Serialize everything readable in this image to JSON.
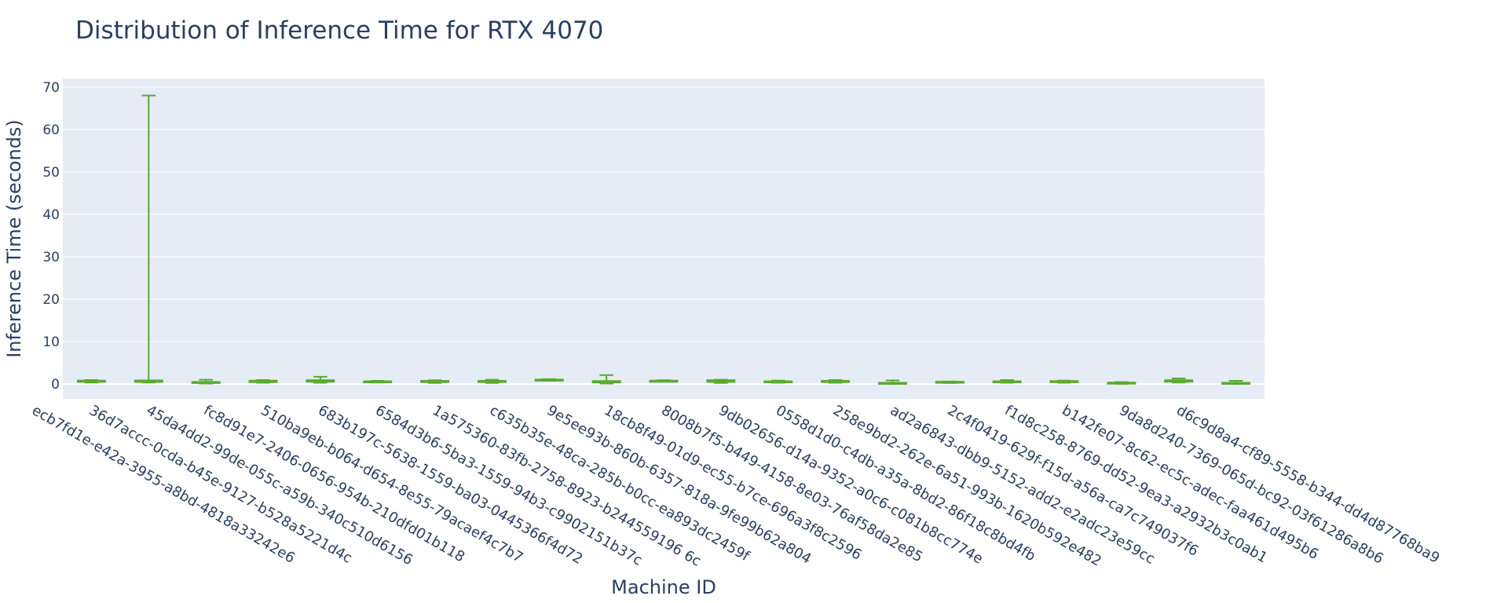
{
  "chart_data": {
    "type": "box",
    "title": "Distribution of Inference Time for RTX 4070",
    "xlabel": "Machine ID",
    "ylabel": "Inference Time (seconds)",
    "ylim": [
      -3.5,
      72
    ],
    "yticks": [
      0,
      10,
      20,
      30,
      40,
      50,
      60,
      70
    ],
    "grid": true,
    "legend": "none",
    "plot_bg": "#e5ecf6",
    "grid_color": "#ffffff",
    "box_color": "#5aaa2e",
    "text_color": "#2a3f5f",
    "categories": [
      "ecb7fd1e-e42a-3955-a8bd-4818a33242e6",
      "36d7accc-0cda-b45e-9127-b528a5221d4c",
      "45da4dd2-99de-055c-a59b-340c510d6156",
      "fc8d91e7-2406-0656-954b-210dfd01b118",
      "510ba9eb-b064-d654-8e55-79acaef4c7b7",
      "683b197c-5638-1559-ba03-0445366f4d72",
      "6584d3b6-5ba3-1559-94b3-c9902151b37c",
      "1a575360-83fb-2758-8923-b244559196 6c",
      "c635b35e-48ca-285b-b0cc-ea893dc2459f",
      "9e5ee93b-860b-6357-818a-9fe99b62a804",
      "18cb8f49-01d9-ec55-b7ce-696a3f8c2596",
      "8008b7f5-b449-4158-8e03-76af58da2e85",
      "9db02656-d14a-9352-a0c6-c081b8cc774e",
      "0558d1d0-c4db-a35a-8bd2-86f18c8bd4fb",
      "258e9bd2-262e-6a51-993b-1620b592e482",
      "ad2a6843-dbb9-5152-add2-e2adc23e59cc",
      "2c4f0419-629f-f15d-a56a-ca7c749037f6",
      "f1d8c258-8769-dd52-9ea3-a2932b3c0ab1",
      "b142fe07-8c62-ec5c-adec-faa461d495b6",
      "9da8d240-7369-065d-bc92-03f61286a8b6",
      "d6c9d8a4-cf89-5558-b344-dd4d87768ba9"
    ],
    "series": [
      {
        "boxes": [
          {
            "min": 0.35,
            "q1": 0.5,
            "median": 0.65,
            "q3": 0.8,
            "max": 0.95
          },
          {
            "min": 0.35,
            "q1": 0.5,
            "median": 0.65,
            "q3": 0.85,
            "max": 68.0
          },
          {
            "min": 0.1,
            "q1": 0.25,
            "median": 0.35,
            "q3": 0.5,
            "max": 1.0
          },
          {
            "min": 0.3,
            "q1": 0.45,
            "median": 0.6,
            "q3": 0.8,
            "max": 0.95
          },
          {
            "min": 0.3,
            "q1": 0.55,
            "median": 0.75,
            "q3": 0.9,
            "max": 1.7
          },
          {
            "min": 0.35,
            "q1": 0.45,
            "median": 0.55,
            "q3": 0.65,
            "max": 0.75
          },
          {
            "min": 0.25,
            "q1": 0.45,
            "median": 0.6,
            "q3": 0.75,
            "max": 0.9
          },
          {
            "min": 0.25,
            "q1": 0.45,
            "median": 0.6,
            "q3": 0.75,
            "max": 1.0
          },
          {
            "min": 0.75,
            "q1": 0.85,
            "median": 0.95,
            "q3": 1.05,
            "max": 1.15
          },
          {
            "min": 0.1,
            "q1": 0.35,
            "median": 0.5,
            "q3": 0.7,
            "max": 2.1
          },
          {
            "min": 0.6,
            "q1": 0.7,
            "median": 0.75,
            "q3": 0.8,
            "max": 0.9
          },
          {
            "min": 0.25,
            "q1": 0.5,
            "median": 0.7,
            "q3": 0.9,
            "max": 1.0
          },
          {
            "min": 0.3,
            "q1": 0.45,
            "median": 0.55,
            "q3": 0.65,
            "max": 0.8
          },
          {
            "min": 0.3,
            "q1": 0.45,
            "median": 0.55,
            "q3": 0.75,
            "max": 0.95
          },
          {
            "min": 0.05,
            "q1": 0.15,
            "median": 0.2,
            "q3": 0.3,
            "max": 0.85
          },
          {
            "min": 0.25,
            "q1": 0.35,
            "median": 0.45,
            "q3": 0.55,
            "max": 0.6
          },
          {
            "min": 0.3,
            "q1": 0.4,
            "median": 0.5,
            "q3": 0.65,
            "max": 0.95
          },
          {
            "min": 0.3,
            "q1": 0.45,
            "median": 0.55,
            "q3": 0.7,
            "max": 0.8
          },
          {
            "min": 0.05,
            "q1": 0.15,
            "median": 0.25,
            "q3": 0.35,
            "max": 0.45
          },
          {
            "min": 0.35,
            "q1": 0.55,
            "median": 0.75,
            "q3": 0.9,
            "max": 1.3
          },
          {
            "min": 0.05,
            "q1": 0.15,
            "median": 0.2,
            "q3": 0.3,
            "max": 0.75
          }
        ]
      }
    ]
  }
}
